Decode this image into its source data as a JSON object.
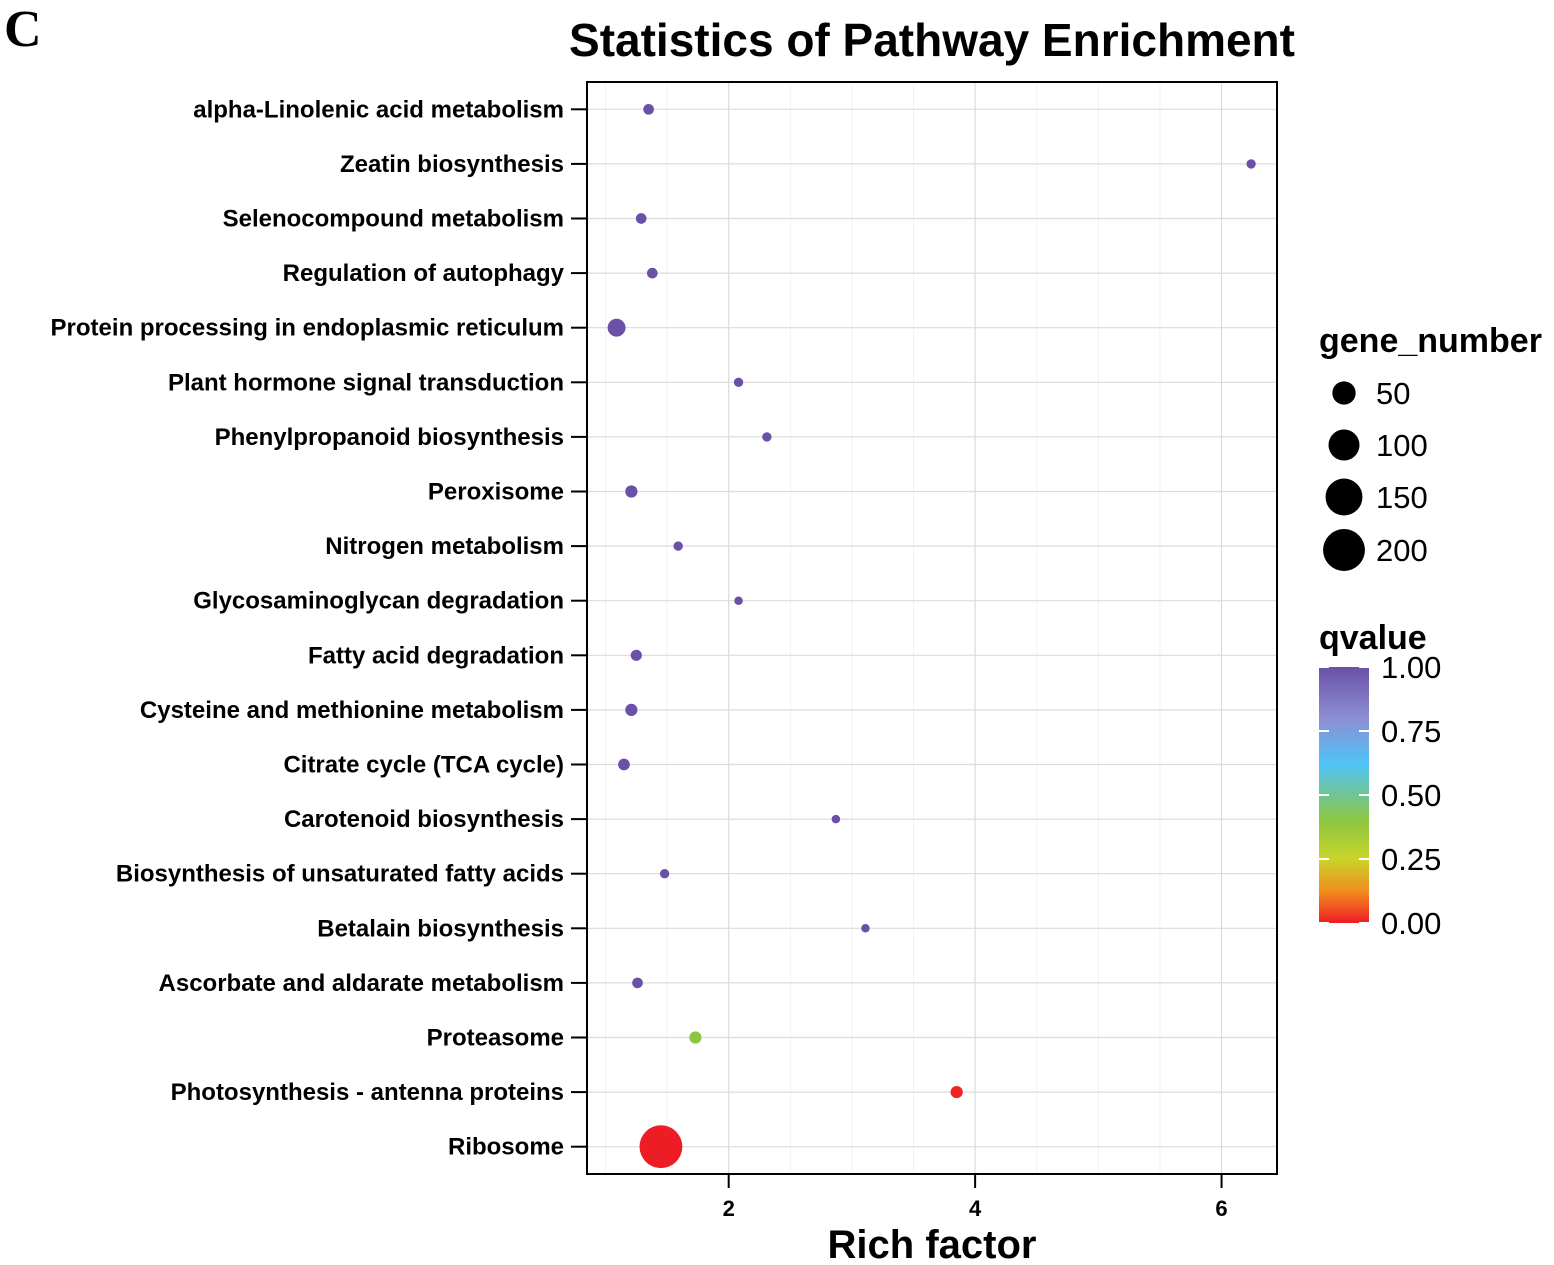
{
  "panel_label": "C",
  "chart_data": {
    "type": "scatter",
    "title": "Statistics of Pathway Enrichment",
    "xlabel": "Rich factor",
    "ylabel": "",
    "xlim": [
      0.85,
      6.45
    ],
    "xticks": [
      2,
      4,
      6
    ],
    "grid": true,
    "points": [
      {
        "category": "alpha-Linolenic acid metabolism",
        "rich_factor": 1.35,
        "gene_number": 5,
        "qvalue": 1.0
      },
      {
        "category": "Zeatin biosynthesis",
        "rich_factor": 6.24,
        "gene_number": 3,
        "qvalue": 1.0
      },
      {
        "category": "Selenocompound metabolism",
        "rich_factor": 1.29,
        "gene_number": 5,
        "qvalue": 1.0
      },
      {
        "category": "Regulation of autophagy",
        "rich_factor": 1.38,
        "gene_number": 5,
        "qvalue": 1.0
      },
      {
        "category": "Protein processing in endoplasmic reticulum",
        "rich_factor": 1.09,
        "gene_number": 25,
        "qvalue": 1.0
      },
      {
        "category": "Plant hormone signal transduction",
        "rich_factor": 2.08,
        "gene_number": 3,
        "qvalue": 1.0
      },
      {
        "category": "Phenylpropanoid biosynthesis",
        "rich_factor": 2.31,
        "gene_number": 3,
        "qvalue": 1.0
      },
      {
        "category": "Peroxisome",
        "rich_factor": 1.21,
        "gene_number": 8,
        "qvalue": 1.0
      },
      {
        "category": "Nitrogen metabolism",
        "rich_factor": 1.59,
        "gene_number": 3,
        "qvalue": 1.0
      },
      {
        "category": "Glycosaminoglycan degradation",
        "rich_factor": 2.08,
        "gene_number": 2,
        "qvalue": 1.0
      },
      {
        "category": "Fatty acid degradation",
        "rich_factor": 1.25,
        "gene_number": 6,
        "qvalue": 1.0
      },
      {
        "category": "Cysteine and methionine metabolism",
        "rich_factor": 1.21,
        "gene_number": 8,
        "qvalue": 1.0
      },
      {
        "category": "Citrate cycle (TCA cycle)",
        "rich_factor": 1.15,
        "gene_number": 7,
        "qvalue": 1.0
      },
      {
        "category": "Carotenoid biosynthesis",
        "rich_factor": 2.87,
        "gene_number": 2,
        "qvalue": 1.0
      },
      {
        "category": "Biosynthesis of unsaturated fatty acids",
        "rich_factor": 1.48,
        "gene_number": 3,
        "qvalue": 1.0
      },
      {
        "category": "Betalain biosynthesis",
        "rich_factor": 3.11,
        "gene_number": 2,
        "qvalue": 1.0
      },
      {
        "category": "Ascorbate and aldarate metabolism",
        "rich_factor": 1.26,
        "gene_number": 5,
        "qvalue": 1.0
      },
      {
        "category": "Proteasome",
        "rich_factor": 1.73,
        "gene_number": 8,
        "qvalue": 0.4
      },
      {
        "category": "Photosynthesis - antenna proteins",
        "rich_factor": 3.85,
        "gene_number": 8,
        "qvalue": 0.01
      },
      {
        "category": "Ribosome",
        "rich_factor": 1.45,
        "gene_number": 210,
        "qvalue": 0.0
      }
    ],
    "legend_size": {
      "title": "gene_number",
      "entries": [
        {
          "label": "50",
          "value": 50
        },
        {
          "label": "100",
          "value": 100
        },
        {
          "label": "150",
          "value": 150
        },
        {
          "label": "200",
          "value": 200
        }
      ]
    },
    "legend_color": {
      "title": "qvalue",
      "ticks": [
        "1.00",
        "0.75",
        "0.50",
        "0.25",
        "0.00"
      ],
      "tick_values": [
        1.0,
        0.75,
        0.5,
        0.25,
        0.0
      ],
      "gradient": [
        {
          "value": 0.0,
          "color": "#ee1c25"
        },
        {
          "value": 0.12,
          "color": "#f28a1e"
        },
        {
          "value": 0.25,
          "color": "#c9d42a"
        },
        {
          "value": 0.4,
          "color": "#8cc63f"
        },
        {
          "value": 0.62,
          "color": "#4fc3f7"
        },
        {
          "value": 0.8,
          "color": "#8d8fd3"
        },
        {
          "value": 1.0,
          "color": "#6a50a7"
        }
      ]
    }
  }
}
